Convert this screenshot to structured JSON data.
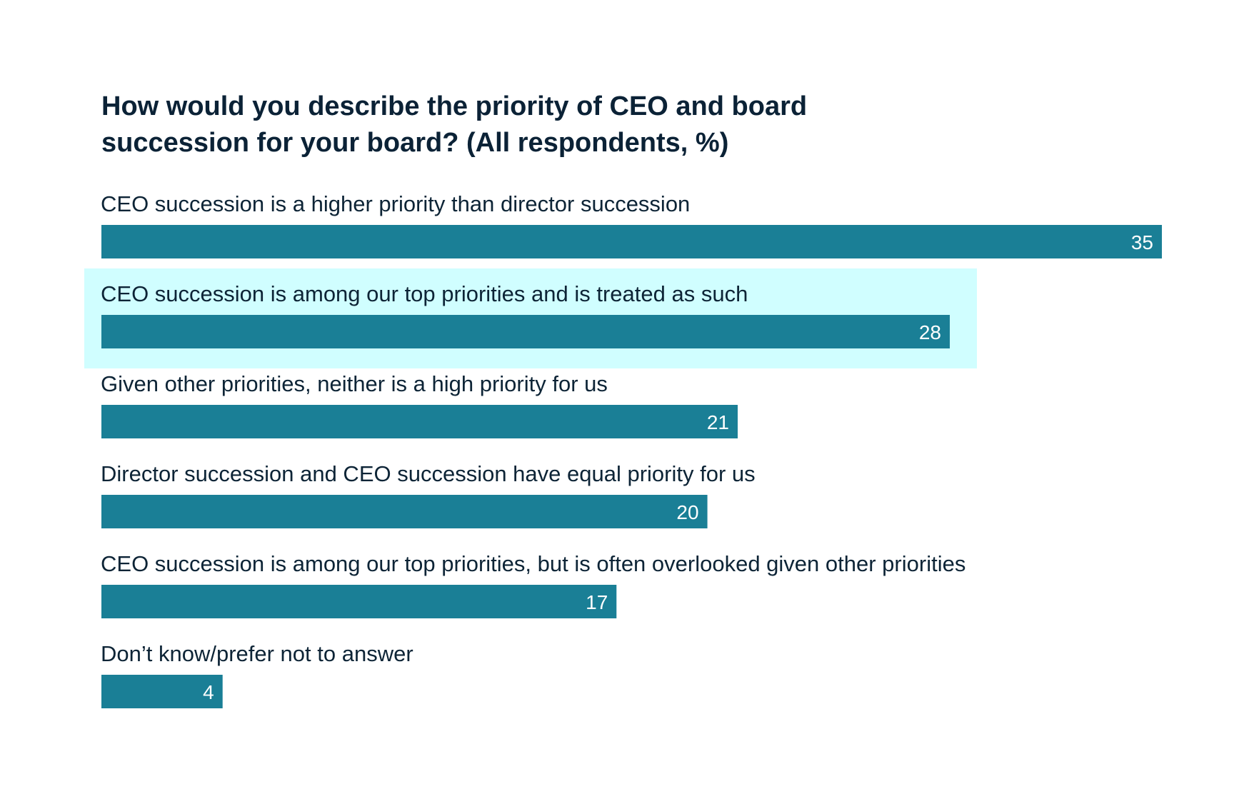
{
  "chart_data": {
    "type": "bar",
    "orientation": "horizontal",
    "title": "How would you describe the priority of CEO and board succession for your board? (All respondents, %)",
    "categories": [
      "CEO succession is a higher priority than director succession",
      "CEO succession is among our top priorities and is treated as such",
      "Given other priorities, neither is a high priority for us",
      "Director succession and CEO succession have equal priority for us",
      "CEO succession is among our top priorities, but is often overlooked given other priorities",
      "Don’t know/prefer not to answer"
    ],
    "values": [
      35,
      28,
      21,
      20,
      17,
      4
    ],
    "highlighted_index": 1,
    "xlim": [
      0,
      35
    ],
    "grid": false,
    "colors": {
      "bar": "#1a7f96",
      "highlight": "#d0feff",
      "text": "#0d2436",
      "value_label": "#ffffff"
    }
  }
}
